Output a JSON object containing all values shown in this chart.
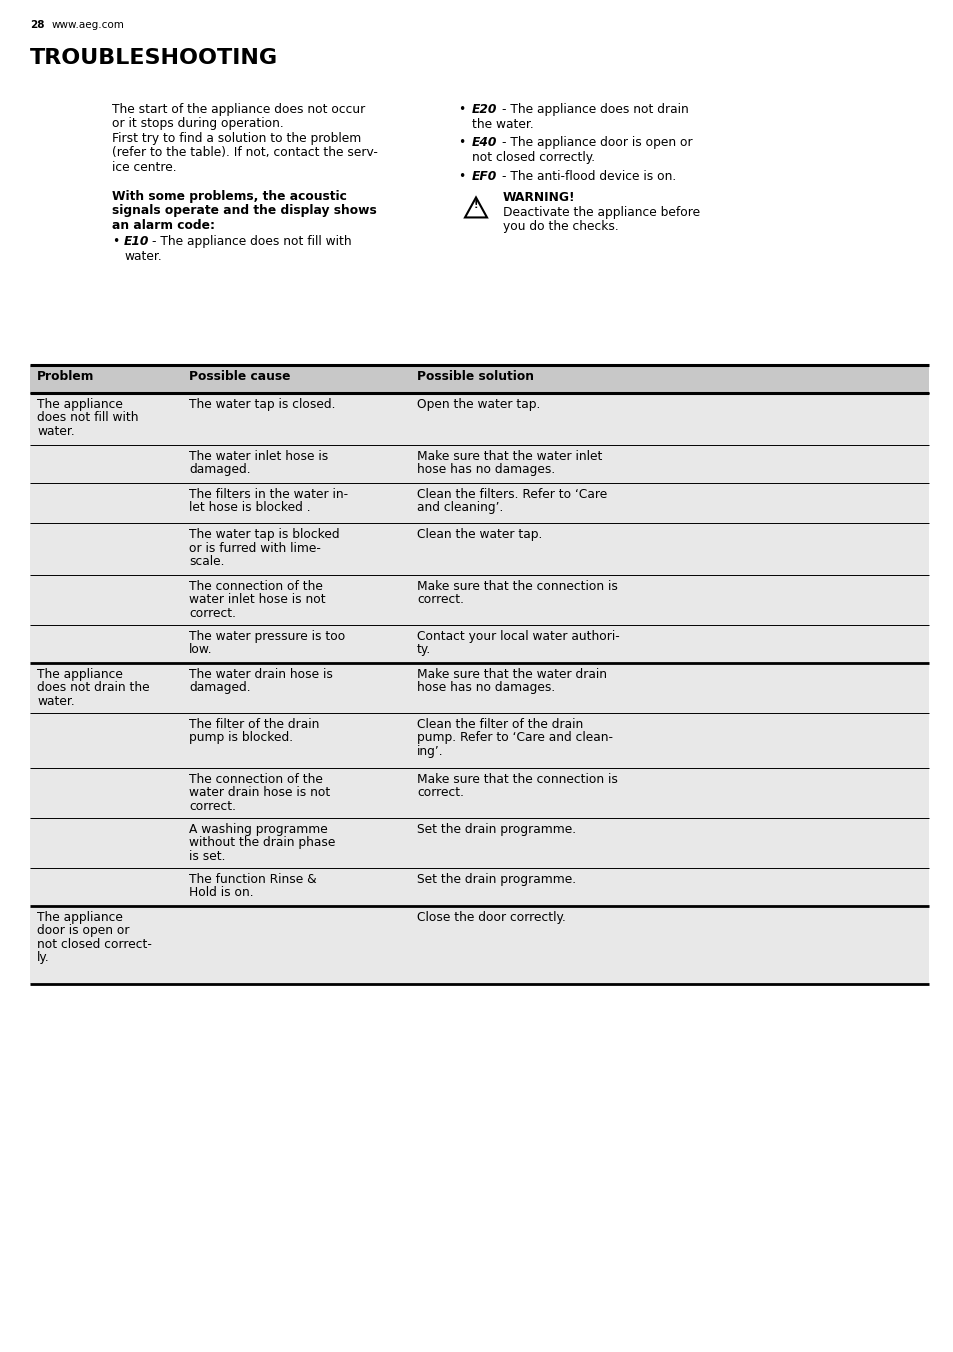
{
  "page_number": "28",
  "website": "www.aeg.com",
  "title": "TROUBLESHOOTING",
  "table_header": [
    "Problem",
    "Possible cause",
    "Possible solution"
  ],
  "table_rows": [
    {
      "problem": "The appliance\ndoes not fill with\nwater.",
      "cause": "The water tap is closed.",
      "solution": "Open the water tap.",
      "row_type": "group_start"
    },
    {
      "problem": "",
      "cause": "The water inlet hose is\ndamaged.",
      "solution": "Make sure that the water inlet\nhose has no damages.",
      "row_type": "normal"
    },
    {
      "problem": "",
      "cause": "The filters in the water in-\nlet hose is blocked .",
      "solution": "Clean the filters. Refer to ‘Care\nand cleaning’.",
      "row_type": "normal"
    },
    {
      "problem": "",
      "cause": "The water tap is blocked\nor is furred with lime-\nscale.",
      "solution": "Clean the water tap.",
      "row_type": "normal"
    },
    {
      "problem": "",
      "cause": "The connection of the\nwater inlet hose is not\ncorrect.",
      "solution": "Make sure that the connection is\ncorrect.",
      "row_type": "normal"
    },
    {
      "problem": "",
      "cause": "The water pressure is too\nlow.",
      "solution": "Contact your local water authori-\nty.",
      "row_type": "normal"
    },
    {
      "problem": "The appliance\ndoes not drain the\nwater.",
      "cause": "The water drain hose is\ndamaged.",
      "solution": "Make sure that the water drain\nhose has no damages.",
      "row_type": "group_start"
    },
    {
      "problem": "",
      "cause": "The filter of the drain\npump is blocked.",
      "solution": "Clean the filter of the drain\npump. Refer to ‘Care and clean-\ning’.",
      "row_type": "normal"
    },
    {
      "problem": "",
      "cause": "The connection of the\nwater drain hose is not\ncorrect.",
      "solution": "Make sure that the connection is\ncorrect.",
      "row_type": "normal"
    },
    {
      "problem": "",
      "cause": "A washing programme\nwithout the drain phase\nis set.",
      "solution": "Set the drain programme.",
      "row_type": "normal"
    },
    {
      "problem": "",
      "cause": "The function Rinse &\nHold is on.",
      "solution": "Set the drain programme.",
      "row_type": "normal"
    },
    {
      "problem": "The appliance\ndoor is open or\nnot closed correct-\nly.",
      "cause": "",
      "solution": "Close the door correctly.",
      "row_type": "group_start"
    }
  ],
  "bg_color": "#ffffff",
  "table_bg": "#e8e8e8",
  "header_bg": "#c8c8c8"
}
